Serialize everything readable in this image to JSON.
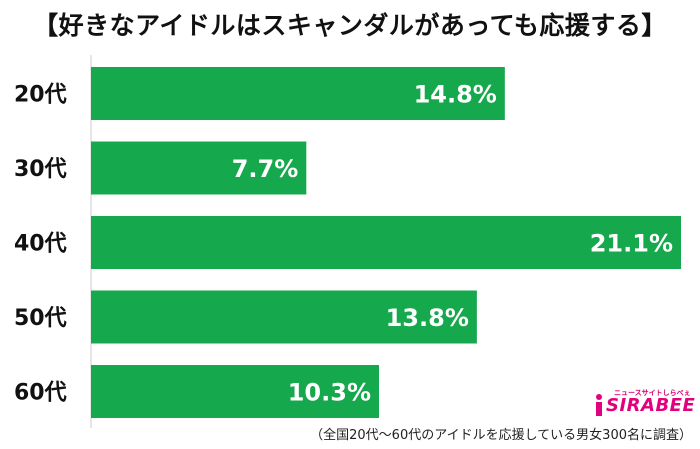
{
  "title": "【好きなアイドルはスキャンダルがあっても応援する】",
  "chart_data": {
    "type": "bar",
    "orientation": "horizontal",
    "categories": [
      "20代",
      "30代",
      "40代",
      "50代",
      "60代"
    ],
    "values": [
      14.8,
      7.7,
      21.1,
      13.8,
      10.3
    ],
    "labels": [
      "14.8%",
      "7.7%",
      "21.1%",
      "13.8%",
      "10.3%"
    ],
    "xlim": [
      0,
      21.1
    ],
    "bar_color": "#16a84c",
    "label_color": "#ffffff",
    "grid": false,
    "legend": "none"
  },
  "logo": {
    "tagline": "ニュースサイトしらべぇ",
    "wordmark": "SIRABEE",
    "accent": "#e3007f"
  },
  "footnote": "（全国20代～60代のアイドルを応援している男女300名に調査）"
}
